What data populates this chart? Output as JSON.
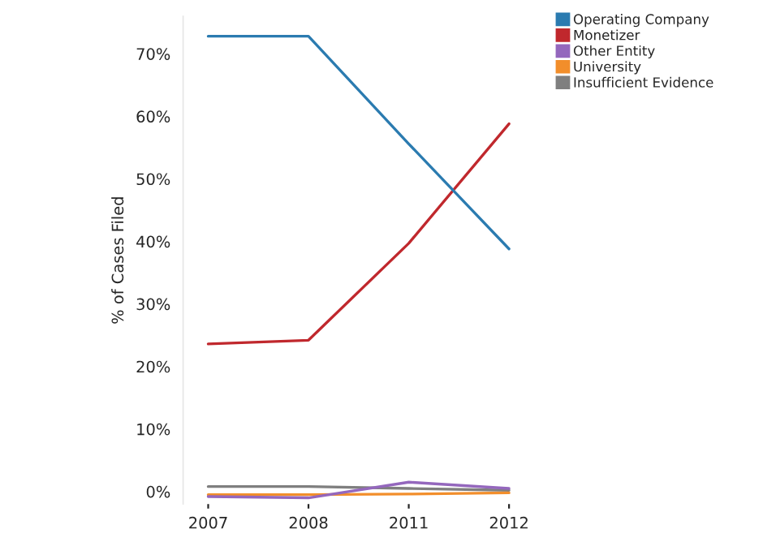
{
  "chart_data": {
    "type": "line",
    "ylabel": "% of Cases Filed",
    "categories": [
      "2007",
      "2008",
      "2011",
      "2012"
    ],
    "series": [
      {
        "name": "Operating Company",
        "color": "#2b7bb0",
        "values": [
          72.8,
          72.8,
          55.6,
          38.8
        ]
      },
      {
        "name": "Monetizer",
        "color": "#c0282d",
        "values": [
          23.6,
          24.2,
          39.7,
          58.8
        ]
      },
      {
        "name": "Other Entity",
        "color": "#9467bd",
        "values": [
          -0.8,
          -1.0,
          1.5,
          0.5
        ]
      },
      {
        "name": "University",
        "color": "#f28e2b",
        "values": [
          -0.5,
          -0.5,
          -0.4,
          -0.2
        ]
      },
      {
        "name": "Insufficient Evidence",
        "color": "#7f7f7f",
        "values": [
          0.8,
          0.8,
          0.5,
          0.2
        ]
      }
    ],
    "ylim": [
      -2,
      76
    ],
    "yticks": [
      {
        "value": 0,
        "label": "0%"
      },
      {
        "value": 10,
        "label": "10%"
      },
      {
        "value": 20,
        "label": "20%"
      },
      {
        "value": 30,
        "label": "30%"
      },
      {
        "value": 40,
        "label": "40%"
      },
      {
        "value": 50,
        "label": "50%"
      },
      {
        "value": 60,
        "label": "60%"
      },
      {
        "value": 70,
        "label": "70%"
      }
    ],
    "grid": false,
    "legend": "top right",
    "marker": "none",
    "line_style": "solid"
  }
}
